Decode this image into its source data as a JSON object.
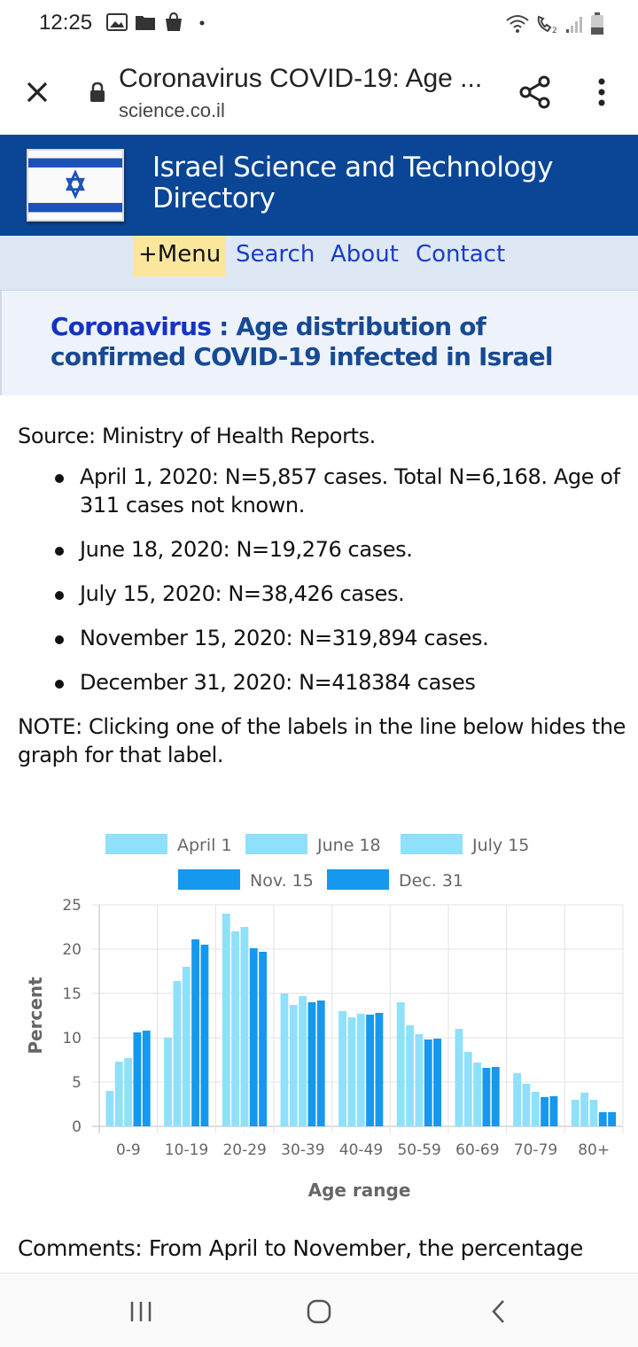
{
  "status_bar": {
    "time": "12:25",
    "left_icons": [
      "image-icon",
      "folder-icon",
      "bag-icon",
      "dot-icon"
    ],
    "right_icons": [
      "wifi-icon",
      "wifi-calling-icon",
      "signal-icon",
      "battery-icon"
    ]
  },
  "browser": {
    "title": "Coronavirus COVID-19: Age ...",
    "domain": "science.co.il",
    "close_icon": "close-icon",
    "lock_icon": "lock-icon",
    "share_icon": "share-icon",
    "more_icon": "more-vert-icon"
  },
  "site": {
    "title": "Israel Science and Technology Directory",
    "header_color": "#0a4695",
    "flag_icon": "israel-flag-icon"
  },
  "nav": {
    "menu": "+Menu",
    "search": "Search",
    "about": "About",
    "contact": "Contact"
  },
  "page": {
    "heading_link": "Coronavirus",
    "heading_rest": " : Age distribution of confirmed COVID-19 infected in Israel",
    "source": "Source: Ministry of Health Reports.",
    "bullets": [
      "April 1, 2020: N=5,857 cases. Total N=6,168. Age of 311 cases not known.",
      "June 18, 2020: N=19,276 cases.",
      "July 15, 2020: N=38,426 cases.",
      "November 15, 2020: N=319,894 cases.",
      "December 31, 2020: N=418384 cases"
    ],
    "note": "NOTE: Clicking one of the labels in the line below hides the graph for that label.",
    "comments": "Comments: From April to November, the percentage"
  },
  "chart_data": {
    "type": "bar",
    "categories": [
      "0-9",
      "10-19",
      "20-29",
      "30-39",
      "40-49",
      "50-59",
      "60-69",
      "70-79",
      "80+"
    ],
    "series": [
      {
        "name": "April 1",
        "color": "#8fe0fb",
        "values": [
          4.0,
          10.0,
          24.0,
          15.0,
          13.0,
          14.0,
          11.0,
          6.0,
          3.0
        ]
      },
      {
        "name": "June 18",
        "color": "#8fe0fb",
        "values": [
          7.3,
          16.4,
          22.0,
          13.7,
          12.3,
          11.4,
          8.4,
          4.8,
          3.8
        ]
      },
      {
        "name": "July 15",
        "color": "#8fe0fb",
        "values": [
          7.7,
          18.0,
          22.5,
          14.7,
          12.7,
          10.4,
          7.2,
          3.9,
          3.0
        ]
      },
      {
        "name": "Nov. 15",
        "color": "#1598ee",
        "values": [
          10.6,
          21.1,
          20.1,
          14.0,
          12.6,
          9.8,
          6.6,
          3.3,
          1.6
        ]
      },
      {
        "name": "Dec. 31",
        "color": "#1598ee",
        "values": [
          10.8,
          20.5,
          19.7,
          14.2,
          12.8,
          9.9,
          6.7,
          3.4,
          1.6
        ]
      }
    ],
    "xlabel": "Age range",
    "ylabel": "Percent",
    "ylim": [
      0,
      25
    ],
    "yticks": [
      0,
      5,
      10,
      15,
      20,
      25
    ],
    "grid": true,
    "legend_position": "top"
  },
  "system_nav": {
    "recents_icon": "recents-icon",
    "home_icon": "home-icon",
    "back_icon": "back-icon"
  }
}
